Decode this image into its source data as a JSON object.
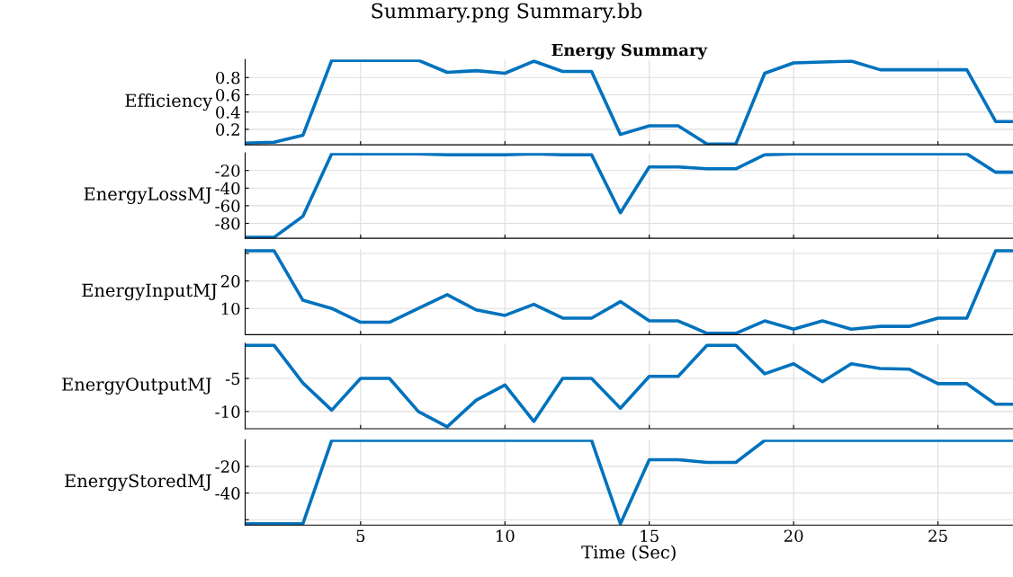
{
  "chart_data": [
    {
      "type": "line",
      "title": "Summary.png Summary.bb",
      "subtitle": "Energy Summary",
      "ylabel": "Efficiency",
      "x": [
        1,
        2,
        3,
        4,
        5,
        6,
        7,
        8,
        9,
        10,
        11,
        12,
        13,
        14,
        15,
        16,
        17,
        18,
        19,
        20,
        21,
        22,
        23,
        24,
        25,
        26,
        27,
        27.6
      ],
      "series": [
        {
          "color": "#0072bd",
          "values": [
            0.04,
            0.05,
            0.13,
            1.0,
            1.0,
            1.0,
            1.0,
            0.86,
            0.88,
            0.85,
            0.99,
            0.87,
            0.87,
            0.14,
            0.24,
            0.24,
            0.03,
            0.03,
            0.85,
            0.97,
            0.98,
            0.99,
            0.89,
            0.89,
            0.89,
            0.89,
            0.29,
            0.29
          ]
        }
      ],
      "xlim": [
        1,
        27.6
      ],
      "xticks": [
        5,
        10,
        15,
        20,
        25
      ],
      "ylim": [
        0.02,
        1.01
      ],
      "yticks": [
        0.2,
        0.4,
        0.6,
        0.8
      ],
      "tick_labels": "y",
      "grid": true,
      "marker": "none",
      "line_style": "solid"
    },
    {
      "type": "line",
      "ylabel": "EnergyLossMJ",
      "x": [
        1,
        2,
        3,
        4,
        5,
        6,
        7,
        8,
        9,
        10,
        11,
        12,
        13,
        14,
        15,
        16,
        17,
        18,
        19,
        20,
        21,
        22,
        23,
        24,
        25,
        26,
        27,
        27.6
      ],
      "series": [
        {
          "color": "#0072bd",
          "values": [
            -96,
            -96,
            -72,
            -1,
            -1,
            -1,
            -1,
            -2,
            -2,
            -2,
            -1,
            -2,
            -2,
            -68,
            -16,
            -16,
            -18,
            -18,
            -2,
            -1,
            -1,
            -1,
            -1,
            -1,
            -1,
            -1,
            -22,
            -22
          ]
        }
      ],
      "xlim": [
        1,
        27.6
      ],
      "xticks": [
        5,
        10,
        15,
        20,
        25
      ],
      "ylim": [
        -97,
        0
      ],
      "yticks": [
        -80,
        -60,
        -40,
        -20
      ],
      "tick_labels": "y",
      "grid": true,
      "marker": "none",
      "line_style": "solid"
    },
    {
      "type": "line",
      "ylabel": "EnergyInputMJ",
      "x": [
        1,
        2,
        3,
        4,
        5,
        6,
        7,
        8,
        9,
        10,
        11,
        12,
        13,
        14,
        15,
        16,
        17,
        18,
        19,
        20,
        21,
        22,
        23,
        24,
        25,
        26,
        27,
        27.6
      ],
      "series": [
        {
          "color": "#0072bd",
          "values": [
            31,
            31,
            13,
            10,
            5,
            5,
            10,
            15,
            9.5,
            7.5,
            11.5,
            6.5,
            6.5,
            12.5,
            5.5,
            5.5,
            1,
            1,
            5.5,
            2.5,
            5.5,
            2.5,
            3.5,
            3.5,
            6.5,
            6.5,
            31,
            31
          ]
        }
      ],
      "xlim": [
        1,
        27.6
      ],
      "xticks": [
        5,
        10,
        15,
        20,
        25
      ],
      "ylim": [
        0.5,
        31.5
      ],
      "yticks": [
        10,
        20,
        {
          "value": 30,
          "label": null
        }
      ],
      "tick_labels": "y",
      "grid": true,
      "marker": "none",
      "line_style": "solid"
    },
    {
      "type": "line",
      "ylabel": "EnergyOutputMJ",
      "x": [
        1,
        2,
        3,
        4,
        5,
        6,
        7,
        8,
        9,
        10,
        11,
        12,
        13,
        14,
        15,
        16,
        17,
        18,
        19,
        20,
        21,
        22,
        23,
        24,
        25,
        26,
        27,
        27.6
      ],
      "series": [
        {
          "color": "#0072bd",
          "values": [
            0,
            0,
            -5.7,
            -9.8,
            -5,
            -5,
            -10,
            -12.3,
            -8.3,
            -6,
            -11.5,
            -5,
            -5,
            -9.5,
            -4.7,
            -4.7,
            0,
            0,
            -4.3,
            -2.8,
            -5.5,
            -2.8,
            -3.5,
            -3.6,
            -5.8,
            -5.8,
            -8.9,
            -8.9
          ]
        }
      ],
      "xlim": [
        1,
        27.6
      ],
      "xticks": [
        5,
        10,
        15,
        20,
        25
      ],
      "ylim": [
        -12.6,
        0.3
      ],
      "yticks": [
        -10,
        -5
      ],
      "tick_labels": "y",
      "grid": true,
      "marker": "none",
      "line_style": "solid"
    },
    {
      "type": "line",
      "xlabel": "Time (Sec)",
      "ylabel": "EnergyStoredMJ",
      "x": [
        1,
        2,
        3,
        4,
        5,
        6,
        7,
        8,
        9,
        10,
        11,
        12,
        13,
        14,
        15,
        16,
        17,
        18,
        19,
        20,
        21,
        22,
        23,
        24,
        25,
        26,
        27,
        27.6
      ],
      "series": [
        {
          "color": "#0072bd",
          "values": [
            -63,
            -63,
            -63,
            -0.5,
            -0.5,
            -0.5,
            -0.5,
            -0.5,
            -0.5,
            -0.5,
            -0.5,
            -0.5,
            -0.5,
            -63,
            -15,
            -15,
            -17,
            -17,
            -0.5,
            -0.5,
            -0.5,
            -0.5,
            -0.5,
            -0.5,
            -0.5,
            -0.5,
            -0.5,
            -0.5
          ]
        }
      ],
      "xlim": [
        1,
        27.6
      ],
      "xticks": [
        5,
        10,
        15,
        20,
        25
      ],
      "ylim": [
        -64,
        0
      ],
      "yticks": [
        {
          "value": -60,
          "label": null
        },
        -40,
        -20
      ],
      "grid": true,
      "marker": "none",
      "line_style": "solid"
    }
  ]
}
